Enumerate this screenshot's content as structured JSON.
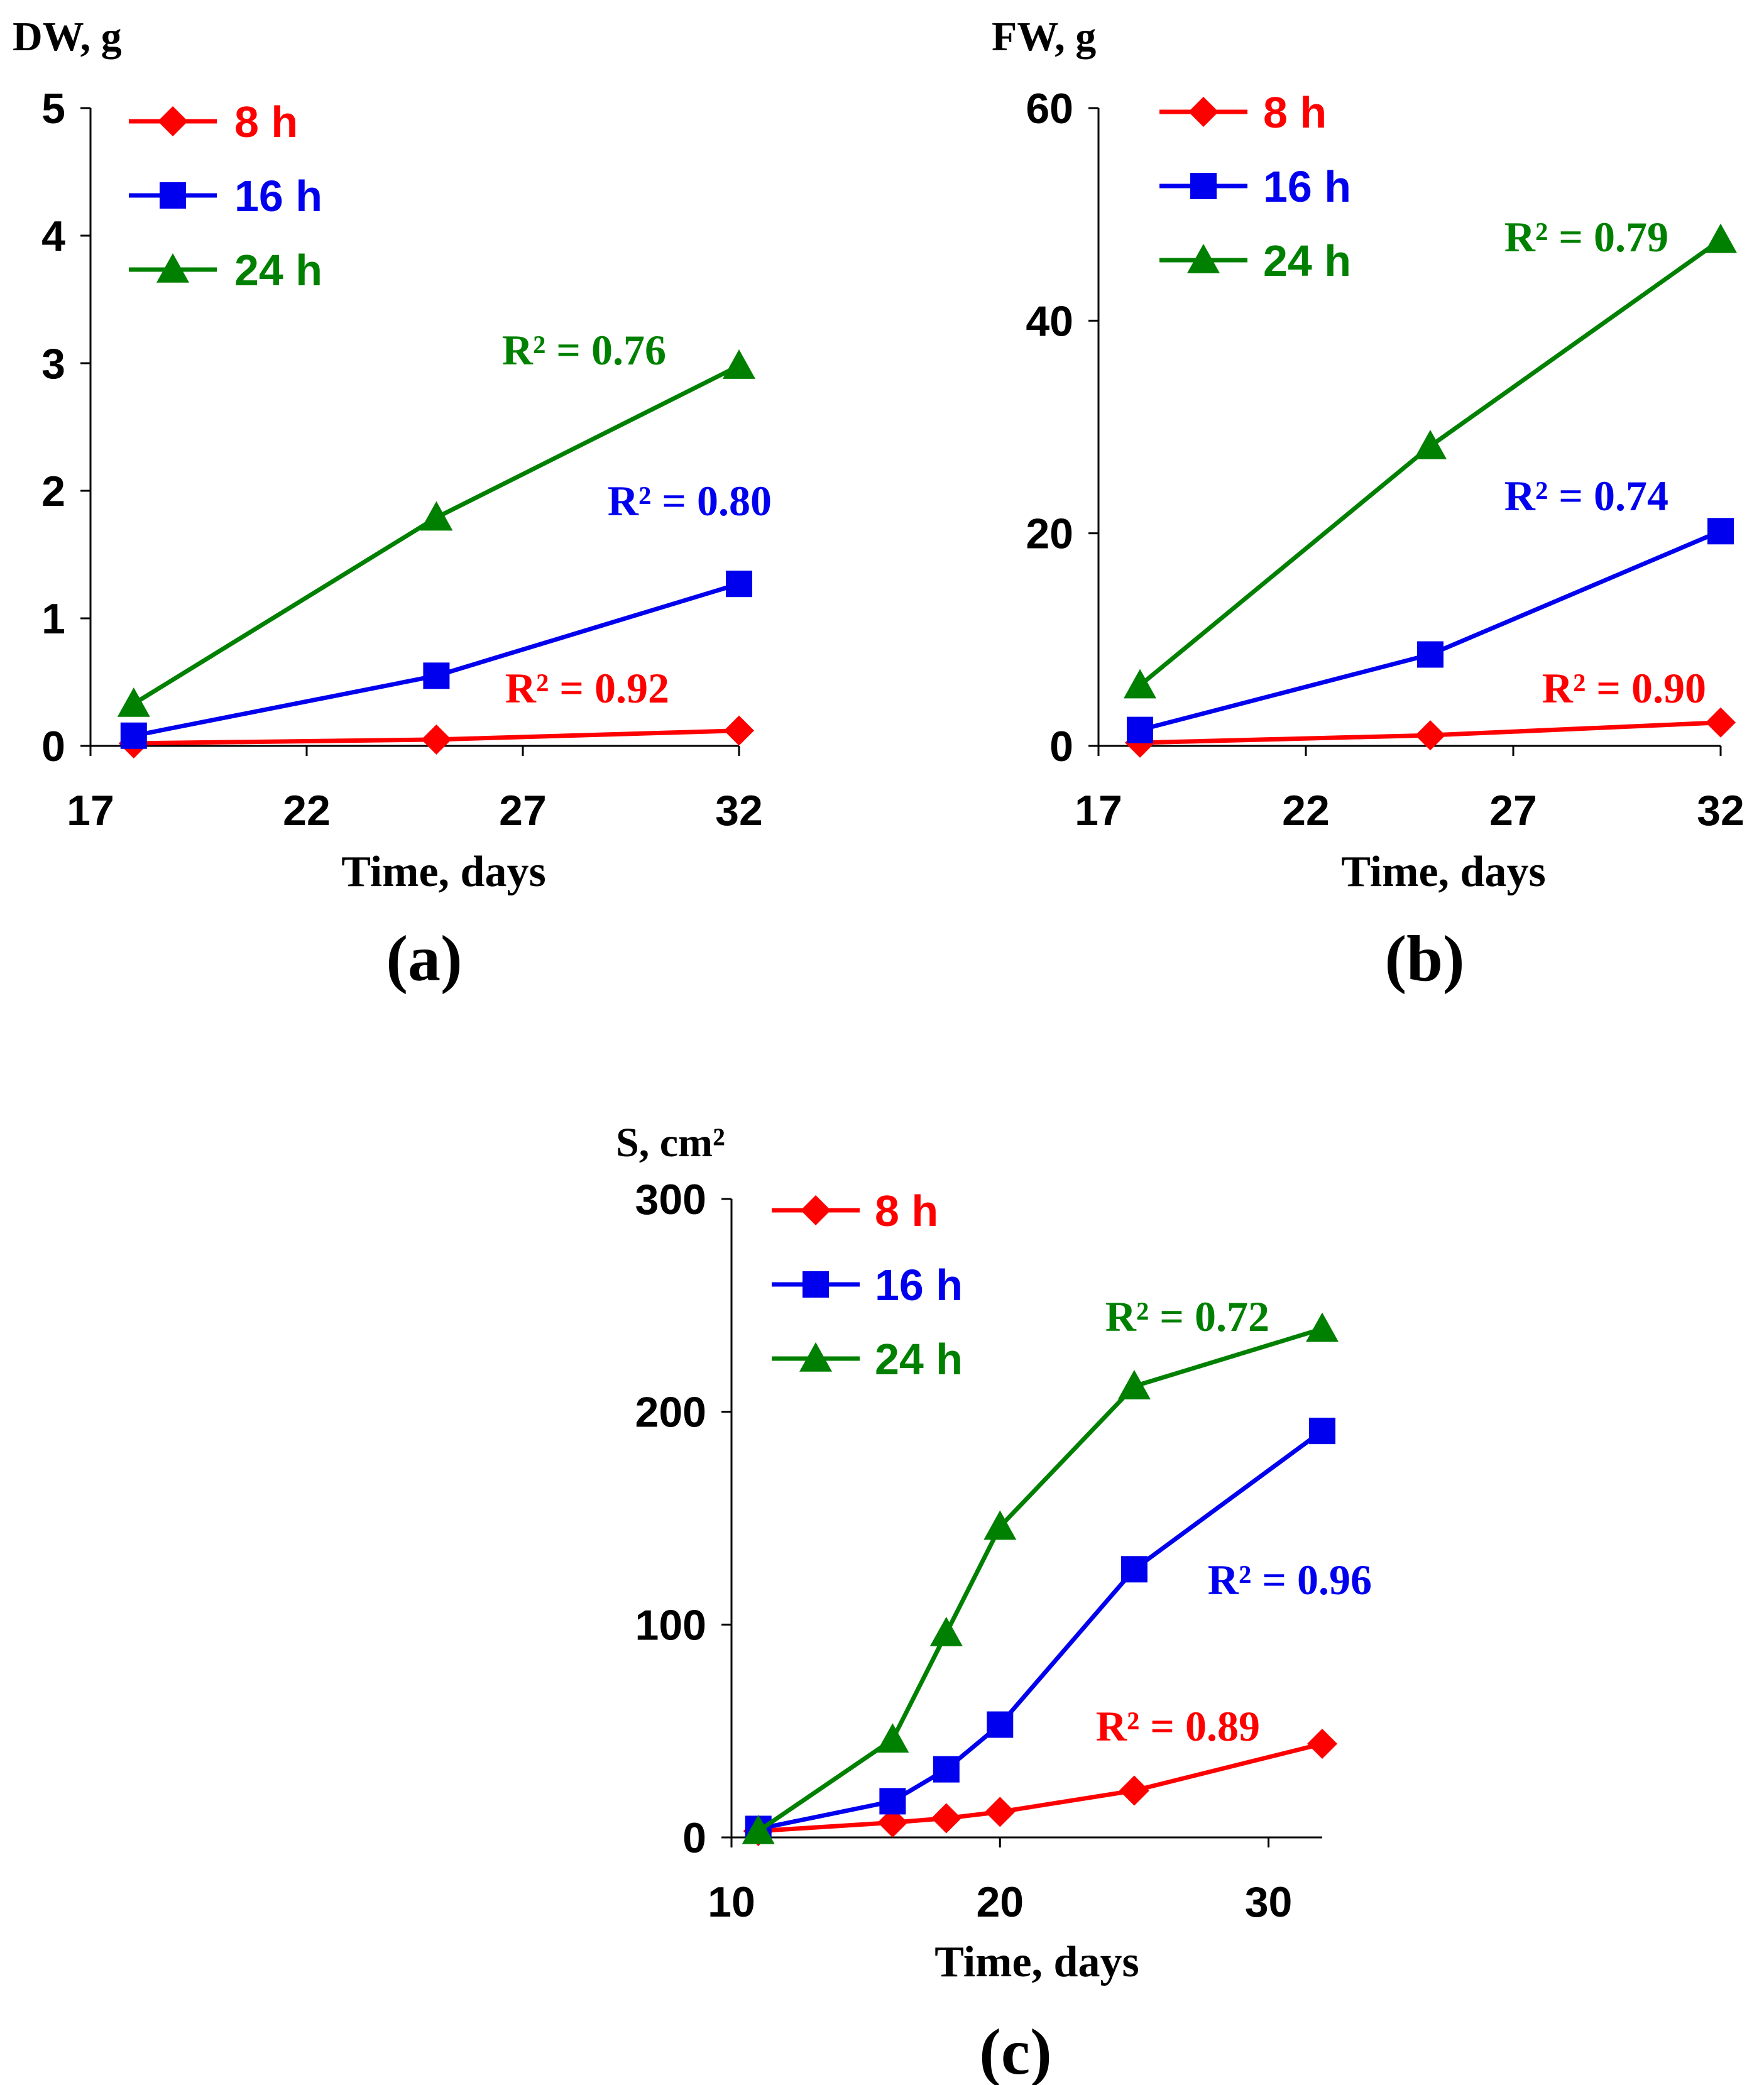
{
  "colors": {
    "8h": "#ff0000",
    "16h": "#0000ee",
    "24h": "#008000",
    "axis": "#000000"
  },
  "chart_data": [
    {
      "type": "line",
      "panel": "(a)",
      "ylabel": "DW, g",
      "xlabel": "Time, days",
      "xlim": [
        17,
        32
      ],
      "ylim": [
        0,
        5
      ],
      "xticks": [
        "17",
        "22",
        "27",
        "32"
      ],
      "yticks": [
        "0",
        "1",
        "2",
        "3",
        "4",
        "5"
      ],
      "x": [
        18,
        25,
        32
      ],
      "legend_position": "top-left",
      "series": [
        {
          "name": "8 h",
          "key": "8h",
          "marker": "diamond",
          "values": [
            0.02,
            0.05,
            0.12
          ],
          "r2": "R² = 0.92"
        },
        {
          "name": "16 h",
          "key": "16h",
          "marker": "square",
          "values": [
            0.08,
            0.55,
            1.27
          ],
          "r2": "R² = 0.80"
        },
        {
          "name": "24 h",
          "key": "24h",
          "marker": "triangle",
          "values": [
            0.33,
            1.79,
            2.98
          ],
          "r2": "R² = 0.76"
        }
      ]
    },
    {
      "type": "line",
      "panel": "(b)",
      "ylabel": "FW, g",
      "xlabel": "Time, days",
      "xlim": [
        17,
        32
      ],
      "ylim": [
        0,
        60
      ],
      "xticks": [
        "17",
        "22",
        "27",
        "32"
      ],
      "yticks": [
        "0",
        "20",
        "40",
        "60"
      ],
      "x": [
        18,
        25,
        32
      ],
      "legend_position": "top-left",
      "series": [
        {
          "name": "8 h",
          "key": "8h",
          "marker": "diamond",
          "values": [
            0.3,
            1.0,
            2.2
          ],
          "r2": "R² = 0.90"
        },
        {
          "name": "16 h",
          "key": "16h",
          "marker": "square",
          "values": [
            1.5,
            8.6,
            20.2
          ],
          "r2": "R² = 0.74"
        },
        {
          "name": "24 h",
          "key": "24h",
          "marker": "triangle",
          "values": [
            5.7,
            28.2,
            47.6
          ],
          "r2": "R² = 0.79"
        }
      ]
    },
    {
      "type": "line",
      "panel": "(c)",
      "ylabel": "S, cm²",
      "xlabel": "Time, days",
      "xlim": [
        10,
        32
      ],
      "ylim": [
        0,
        300
      ],
      "xticks": [
        "10",
        "20",
        "30"
      ],
      "yticks": [
        "0",
        "100",
        "200",
        "300"
      ],
      "x": [
        11,
        16,
        18,
        20,
        25,
        32
      ],
      "legend_position": "top-left",
      "series": [
        {
          "name": "8 h",
          "key": "8h",
          "marker": "diamond",
          "values": [
            3,
            7,
            9,
            12,
            22,
            44
          ],
          "r2": "R² = 0.89"
        },
        {
          "name": "16 h",
          "key": "16h",
          "marker": "square",
          "values": [
            4,
            17,
            32,
            53,
            126,
            191
          ],
          "r2": "R² = 0.96"
        },
        {
          "name": "24 h",
          "key": "24h",
          "marker": "triangle",
          "values": [
            3,
            46,
            96,
            146,
            212,
            239
          ],
          "r2": "R² = 0.72"
        }
      ]
    }
  ]
}
